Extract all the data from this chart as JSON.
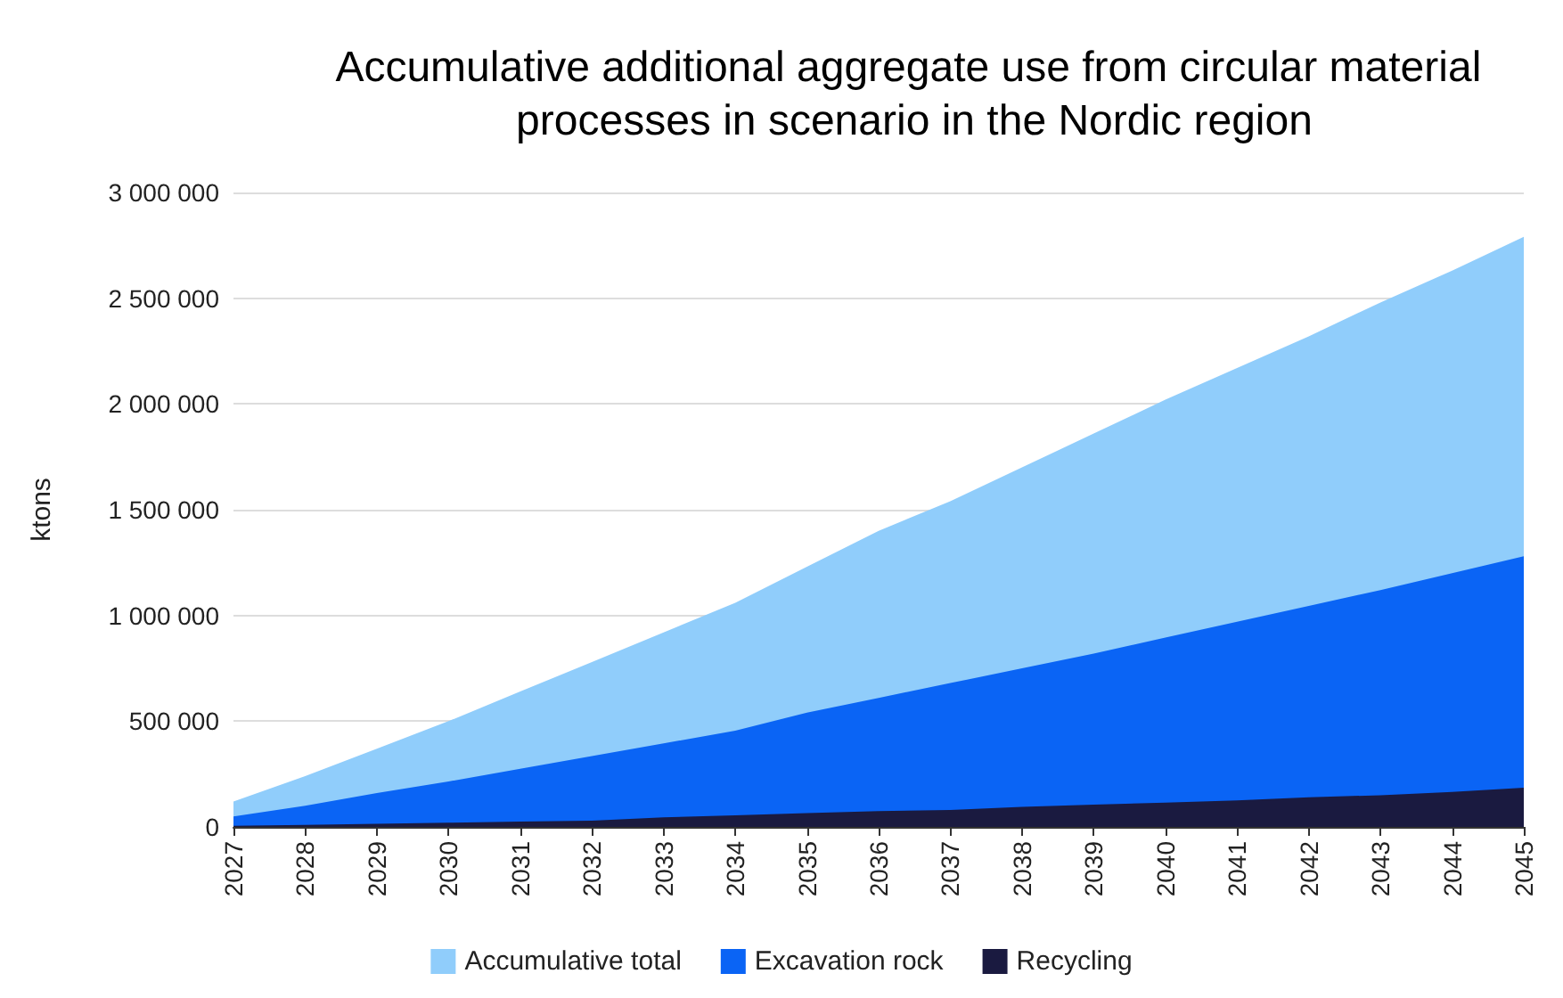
{
  "chart_data": {
    "type": "area",
    "title": "Accumulative additional aggregate use from circular material processes in scenario in the Nordic region",
    "ylabel": "ktons",
    "categories": [
      "2027",
      "2028",
      "2029",
      "2030",
      "2031",
      "2032",
      "2033",
      "2034",
      "2035",
      "2036",
      "2037",
      "2038",
      "2039",
      "2040",
      "2041",
      "2042",
      "2043",
      "2044",
      "2045"
    ],
    "series": [
      {
        "name": "Accumulative total",
        "color": "#90cdfb",
        "values": [
          120000,
          240000,
          370000,
          500000,
          640000,
          780000,
          920000,
          1060000,
          1230000,
          1400000,
          1540000,
          1700000,
          1860000,
          2020000,
          2170000,
          2320000,
          2480000,
          2630000,
          2790000
        ]
      },
      {
        "name": "Excavation rock",
        "color": "#0a64f5",
        "values": [
          50000,
          100000,
          160000,
          215000,
          275000,
          335000,
          395000,
          455000,
          540000,
          610000,
          680000,
          750000,
          820000,
          895000,
          970000,
          1045000,
          1120000,
          1200000,
          1280000
        ]
      },
      {
        "name": "Recycling",
        "color": "#1a1a40",
        "values": [
          5000,
          10000,
          15000,
          20000,
          25000,
          30000,
          45000,
          55000,
          65000,
          75000,
          80000,
          95000,
          105000,
          115000,
          125000,
          140000,
          150000,
          165000,
          185000
        ]
      }
    ],
    "ylim": [
      0,
      3000000
    ],
    "yticks": [
      {
        "value": 0,
        "label": "0"
      },
      {
        "value": 500000,
        "label": "500 000"
      },
      {
        "value": 1000000,
        "label": "1 000 000"
      },
      {
        "value": 1500000,
        "label": "1 500 000"
      },
      {
        "value": 2000000,
        "label": "2 000 000"
      },
      {
        "value": 2500000,
        "label": "2 500 000"
      },
      {
        "value": 3000000,
        "label": "3 000 000"
      }
    ],
    "grid": "y",
    "legend": "bottom"
  }
}
